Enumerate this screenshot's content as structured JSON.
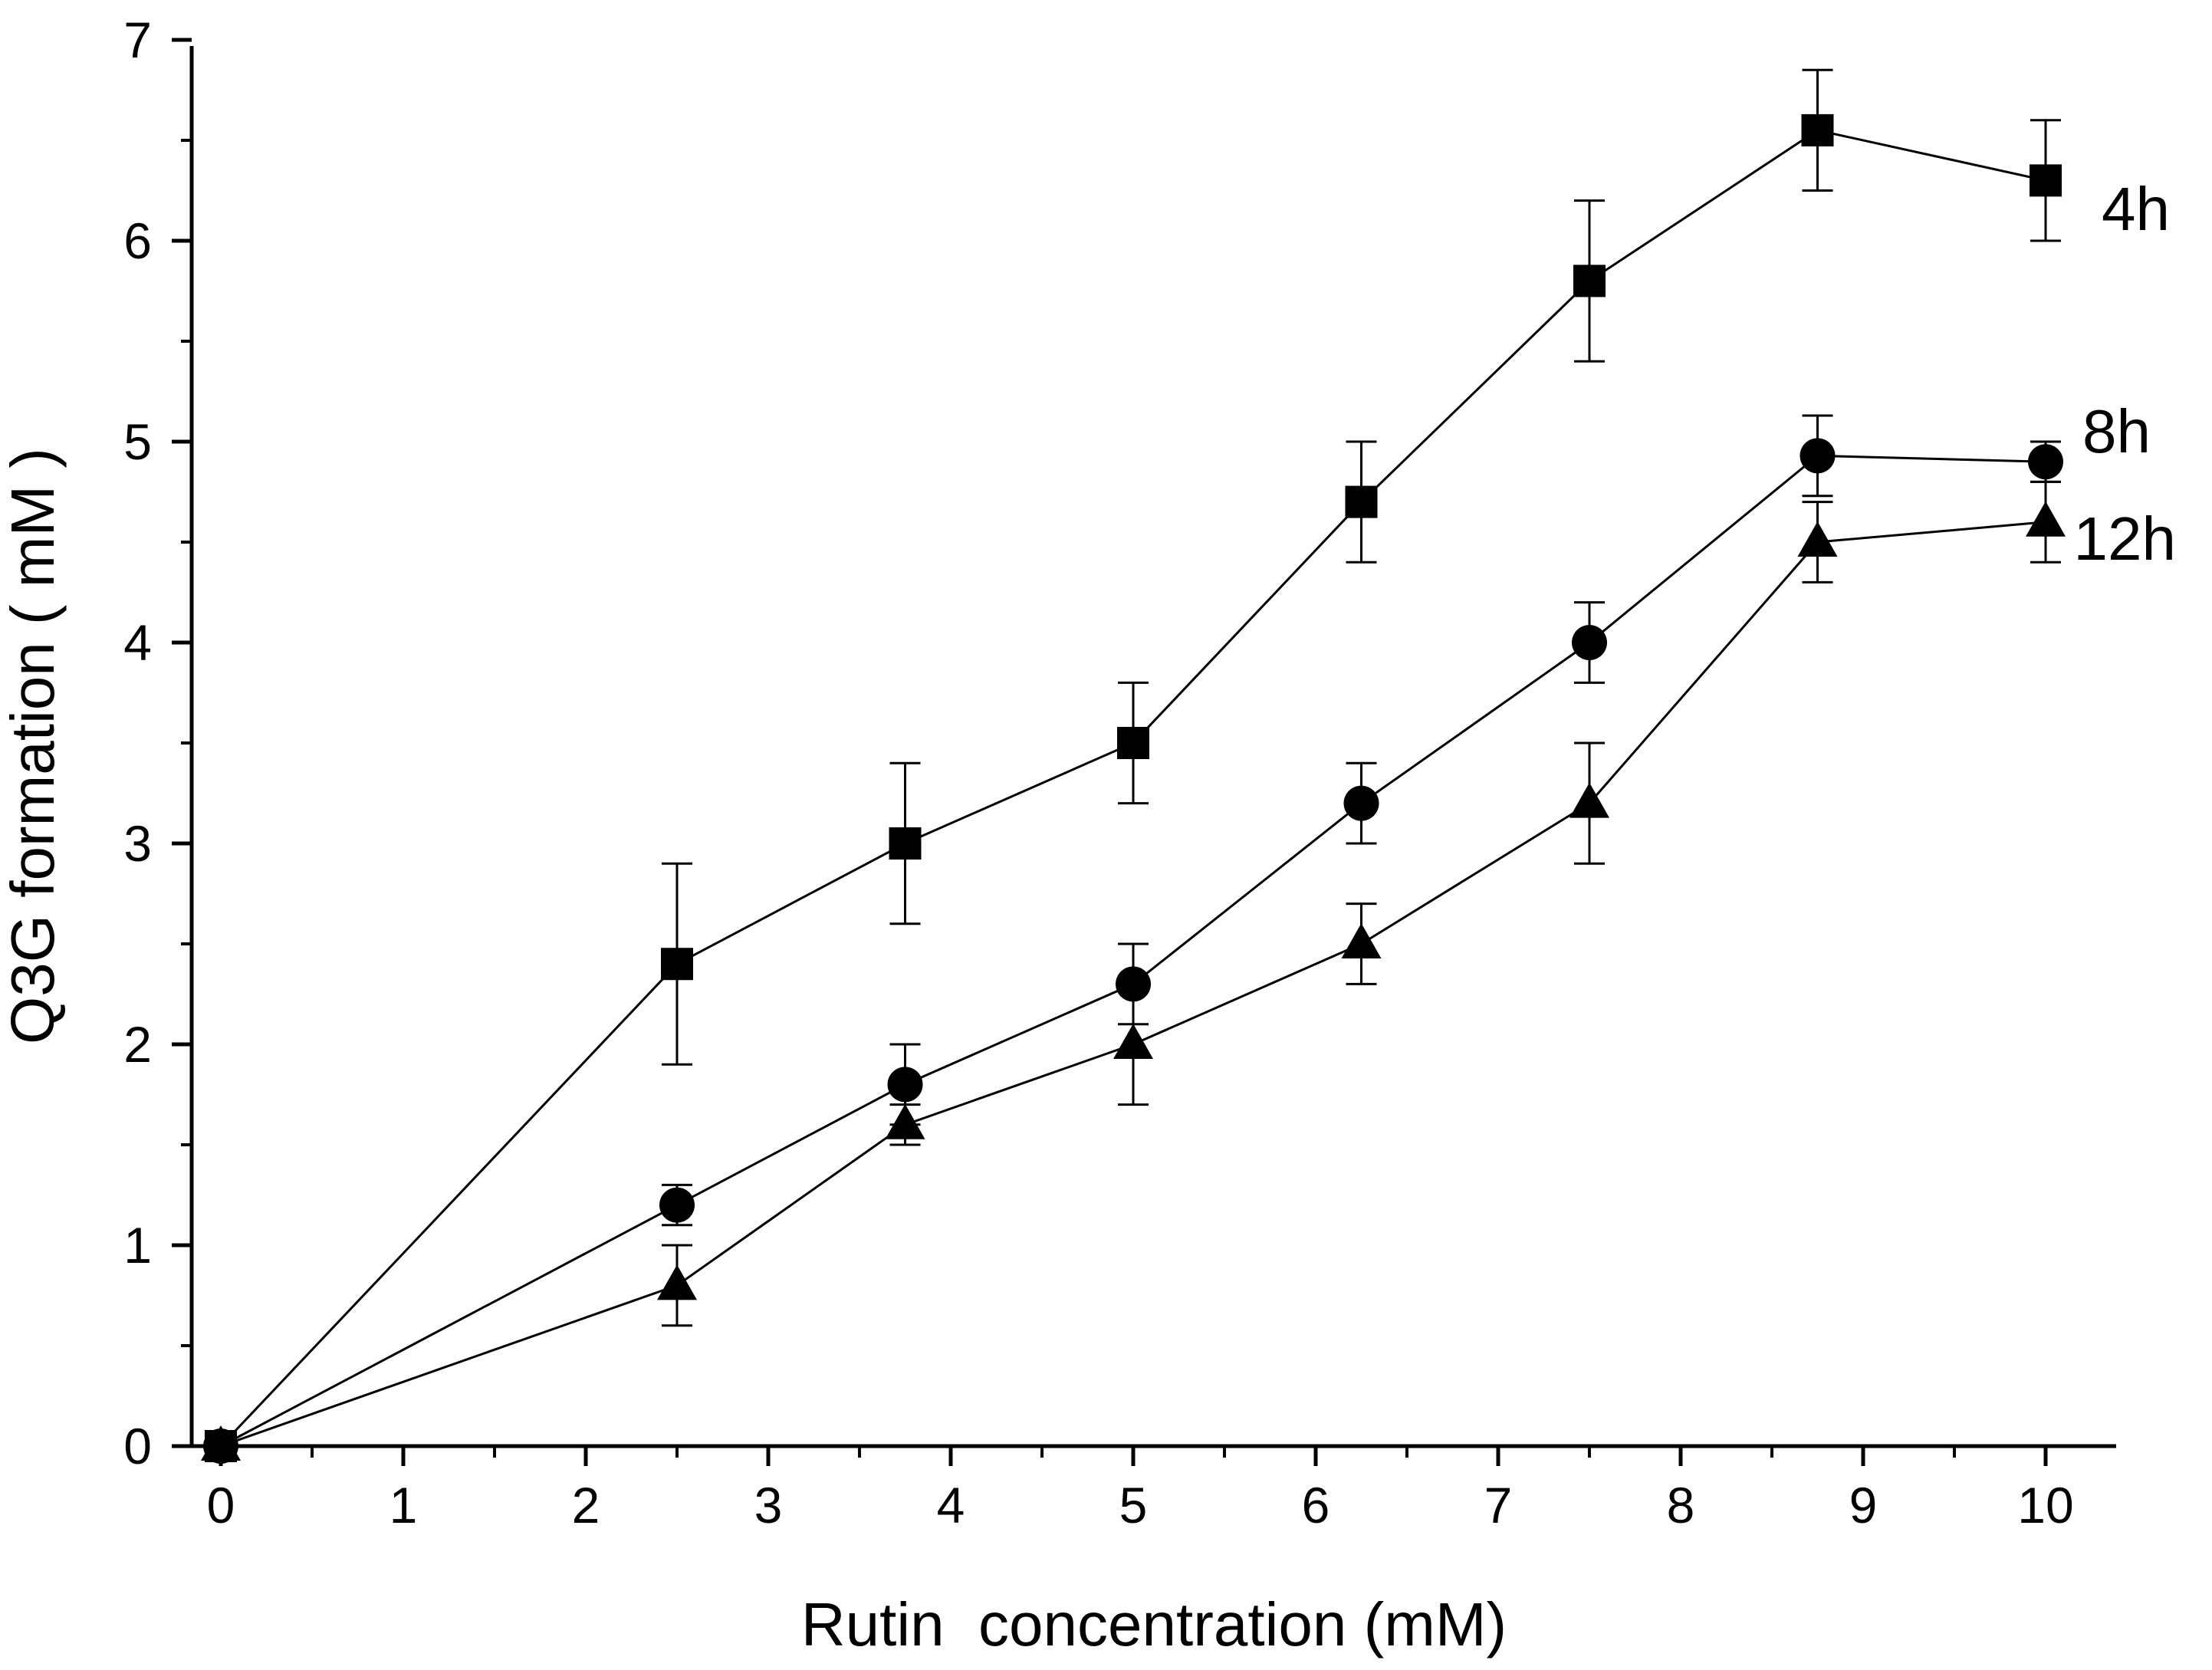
{
  "chart_data": {
    "type": "line",
    "xlabel": "Rutin  concentration (mM)",
    "ylabel": "Q3G formation ( mM )",
    "xlim": [
      -0.2,
      10.4
    ],
    "ylim": [
      0,
      7
    ],
    "x_ticks": [
      "0",
      "1",
      "2",
      "3",
      "4",
      "5",
      "6",
      "7",
      "8",
      "9",
      "10"
    ],
    "y_ticks": [
      "0",
      "1",
      "2",
      "3",
      "4",
      "5",
      "6",
      "7"
    ],
    "x": [
      0,
      2.5,
      3.75,
      5,
      6.25,
      7.5,
      8.75,
      10
    ],
    "series": [
      {
        "name": "4h",
        "marker": "square",
        "values": [
          0,
          2.4,
          3.0,
          3.5,
          4.7,
          5.8,
          6.55,
          6.3
        ],
        "errors": [
          0,
          0.5,
          0.4,
          0.3,
          0.3,
          0.4,
          0.3,
          0.3
        ]
      },
      {
        "name": "8h",
        "marker": "circle",
        "values": [
          0,
          1.2,
          1.8,
          2.3,
          3.2,
          4.0,
          4.93,
          4.9
        ],
        "errors": [
          0,
          0.1,
          0.2,
          0.2,
          0.2,
          0.2,
          0.2,
          0.1
        ]
      },
      {
        "name": "12h",
        "marker": "triangle",
        "values": [
          0,
          0.8,
          1.6,
          2.0,
          2.5,
          3.2,
          4.5,
          4.6
        ],
        "errors": [
          0,
          0.2,
          0.1,
          0.3,
          0.2,
          0.3,
          0.2,
          0.2
        ]
      }
    ],
    "grid": false,
    "legend": "inline labels at right end of each series"
  }
}
